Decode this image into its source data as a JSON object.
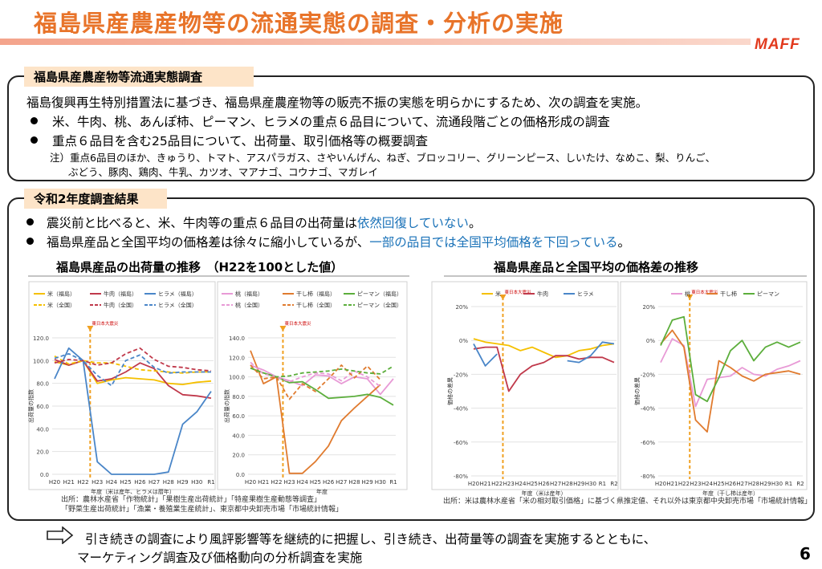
{
  "title": "福島県産農産物等の流通実態の調査・分析の実施",
  "brand": "MAFF",
  "page_number": "6",
  "survey": {
    "label": "福島県産農産物等流通実態調査",
    "intro": "福島復興再生特別措置法に基づき、福島県産農産物等の販売不振の実態を明らかにするため、次の調査を実施。",
    "bullet1": "米、牛肉、桃、あんぽ柿、ピーマン、ヒラメの重点６品目について、流通段階ごとの価格形成の調査",
    "bullet2": "重点６品目を含む25品目について、出荷量、取引価格等の概要調査",
    "note1": "注）重点6品目のほか、きゅうり、トマト、アスパラガス、さやいんげん、ねぎ、ブロッコリー、グリーンピース、しいたけ、なめこ、梨、りんご、",
    "note2": "ぶどう、豚肉、鶏肉、牛乳、カツオ、マアナゴ、コウナゴ、マガレイ"
  },
  "results": {
    "label": "令和2年度調査結果",
    "b1_pre": "震災前と比べると、米、牛肉等の重点６品目の出荷量は",
    "b1_hl": "依然回復していない",
    "b1_post": "。",
    "b2_pre": "福島県産品と全国平均の価格差は徐々に縮小しているが、",
    "b2_hl": "一部の品目では全国平均価格を下回っている",
    "b2_post": "。",
    "left_title": "福島県産品の出荷量の推移　（H22を100とした値）",
    "right_title": "福島県産品と全国平均の価格差の推移",
    "source_left1": "出所：農林水産省「作物統計」「果樹生産出荷統計」「特産果樹生産動態等調査」",
    "source_left2": "「野菜生産出荷統計」「漁業・養殖業生産統計」、東京都中央卸売市場「市場統計情報」",
    "source_right": "出所：米は農林水産省「米の相対取引価格」に基づく県推定値、それ以外は東京都中央卸売市場「市場統計情報」"
  },
  "footer": {
    "line1": "引き続きの調査により風評影響等を継続的に把握し、引き続き、出荷量等の調査を実施するとともに、",
    "line2": "マーケティング調査及び価格動向の分析調査を実施"
  },
  "colors": {
    "rice": "#f5c000",
    "beef": "#c0394b",
    "flounder": "#4a86c8",
    "peach": "#e89ad6",
    "persimmon": "#e07b2f",
    "pepper": "#5cae3c",
    "quake": "#f0a020"
  },
  "chart_data": [
    {
      "type": "line",
      "title": "",
      "categories": [
        "H20",
        "H21",
        "H22",
        "H23",
        "H24",
        "H25",
        "H26",
        "H27",
        "H28",
        "H29",
        "H30",
        "R1"
      ],
      "xlabel": "年度（米は産年、ヒラメは暦年）",
      "ylabel": "出荷量の指数",
      "ylim": [
        0,
        120
      ],
      "yticks": [
        "0.0",
        "20.0",
        "40.0",
        "60.0",
        "80.0",
        "100.0",
        "120.0"
      ],
      "annotation": "東日本大震災",
      "legend": [
        "米（福島）",
        "牛肉（福島）",
        "ヒラメ（福島）",
        "米（全国）",
        "牛肉（全国）",
        "ヒラメ（全国）"
      ],
      "series": [
        {
          "name": "米（福島）",
          "color": "#f5c000",
          "dash": false,
          "values": [
            99,
            96,
            100,
            80,
            83,
            85,
            84,
            83,
            80,
            79,
            81,
            82
          ]
        },
        {
          "name": "牛肉（福島）",
          "color": "#c0394b",
          "dash": false,
          "values": [
            101,
            96,
            100,
            82,
            84,
            90,
            98,
            93,
            78,
            70,
            69,
            67
          ]
        },
        {
          "name": "ヒラメ（福島）",
          "color": "#4a86c8",
          "dash": false,
          "values": [
            84,
            111,
            100,
            11,
            0,
            0,
            0,
            0,
            2,
            44,
            55,
            73
          ]
        },
        {
          "name": "米（全国）",
          "color": "#f5c000",
          "dash": true,
          "values": [
            104,
            97,
            100,
            98,
            98,
            95,
            92,
            91,
            90,
            89,
            90,
            90
          ]
        },
        {
          "name": "牛肉（全国）",
          "color": "#c0394b",
          "dash": true,
          "values": [
            98,
            101,
            100,
            96,
            98,
            106,
            111,
            101,
            95,
            94,
            92,
            91
          ]
        },
        {
          "name": "ヒラメ（全国）",
          "color": "#4a86c8",
          "dash": true,
          "values": [
            102,
            106,
            100,
            87,
            78,
            100,
            105,
            94,
            89,
            90,
            90,
            90
          ]
        }
      ]
    },
    {
      "type": "line",
      "title": "",
      "categories": [
        "H20",
        "H21",
        "H22",
        "H23",
        "H24",
        "H25",
        "H26",
        "H27",
        "H28",
        "H29",
        "H30",
        "R1"
      ],
      "xlabel": "年度",
      "ylabel": "出荷量の指数",
      "ylim": [
        0,
        140
      ],
      "yticks": [
        "0.0",
        "20.0",
        "40.0",
        "60.0",
        "80.0",
        "100.0",
        "120.0",
        "140.0"
      ],
      "annotation": "東日本大震災",
      "legend": [
        "桃（福島）",
        "干し柿（福島）",
        "ピーマン（福島）",
        "桃（全国）",
        "干し柿（全国）",
        "ピーマン（全国）"
      ],
      "series": [
        {
          "name": "桃（福島）",
          "color": "#e89ad6",
          "dash": false,
          "values": [
            112,
            107,
            100,
            96,
            91,
            102,
            101,
            93,
            100,
            98,
            82,
            98
          ]
        },
        {
          "name": "干し柿（福島）",
          "color": "#e07b2f",
          "dash": false,
          "values": [
            127,
            93,
            100,
            1,
            1,
            13,
            29,
            55,
            68,
            80,
            92,
            null
          ]
        },
        {
          "name": "ピーマン（福島）",
          "color": "#5cae3c",
          "dash": false,
          "values": [
            109,
            104,
            100,
            94,
            95,
            87,
            78,
            79,
            80,
            82,
            79,
            71
          ]
        },
        {
          "name": "桃（全国）",
          "color": "#e89ad6",
          "dash": true,
          "values": [
            115,
            103,
            100,
            95,
            100,
            104,
            103,
            96,
            106,
            100,
            90,
            null
          ]
        },
        {
          "name": "干し柿（全国）",
          "color": "#e07b2f",
          "dash": true,
          "values": [
            112,
            98,
            100,
            77,
            93,
            85,
            98,
            112,
            99,
            111,
            97,
            null
          ]
        },
        {
          "name": "ピーマン（全国）",
          "color": "#5cae3c",
          "dash": true,
          "values": [
            109,
            104,
            100,
            101,
            104,
            105,
            106,
            108,
            106,
            104,
            103,
            111
          ]
        }
      ]
    },
    {
      "type": "line",
      "title": "",
      "categories": [
        "H20",
        "H21",
        "H22",
        "H23",
        "H24",
        "H25",
        "H26",
        "H27",
        "H28",
        "H29",
        "H30",
        "R1",
        "R2"
      ],
      "xlabel": "年度（米は産年）",
      "ylabel": "価格の差異",
      "ylim": [
        -80,
        20
      ],
      "yticks": [
        "-80%",
        "-60%",
        "-40%",
        "-20%",
        "0%",
        "20%"
      ],
      "annotation": "東日本大震災",
      "legend": [
        "米",
        "牛肉",
        "ヒラメ"
      ],
      "series": [
        {
          "name": "米",
          "color": "#f5c000",
          "dash": false,
          "values": [
            1,
            -1,
            -2,
            -3,
            -6,
            -4,
            -7,
            -10,
            -9,
            -6,
            -5,
            -3,
            -2
          ]
        },
        {
          "name": "牛肉",
          "color": "#c0394b",
          "dash": false,
          "values": [
            -5,
            -4,
            -4,
            -30,
            -20,
            -15,
            -13,
            -9,
            -9,
            -11,
            -10,
            -10,
            -13
          ]
        },
        {
          "name": "ヒラメ",
          "color": "#4a86c8",
          "dash": false,
          "values": [
            -2,
            -15,
            -8,
            null,
            null,
            null,
            null,
            null,
            -12,
            -13,
            -9,
            -1,
            -2
          ]
        }
      ]
    },
    {
      "type": "line",
      "title": "",
      "categories": [
        "H20",
        "H21",
        "H22",
        "H23",
        "H24",
        "H25",
        "H26",
        "H27",
        "H28",
        "H29",
        "H30",
        "R1",
        "R2"
      ],
      "xlabel": "年度（干し柿は産年）",
      "ylabel": "価格の差異",
      "ylim": [
        -80,
        20
      ],
      "yticks": [
        "-80%",
        "-60%",
        "-40%",
        "-20%",
        "0%",
        "20%"
      ],
      "annotation": "東日本大震災",
      "legend": [
        "桃",
        "干し柿",
        "ピーマン"
      ],
      "series": [
        {
          "name": "桃",
          "color": "#e89ad6",
          "dash": false,
          "values": [
            -13,
            1,
            -3,
            -39,
            -23,
            -22,
            -21,
            -16,
            -20,
            -21,
            -17,
            -15,
            -12
          ]
        },
        {
          "name": "干し柿",
          "color": "#e07b2f",
          "dash": false,
          "values": [
            -2,
            6,
            -4,
            -47,
            -54,
            -12,
            -16,
            -21,
            -24,
            -20,
            -19,
            -18,
            -20
          ]
        },
        {
          "name": "ピーマン",
          "color": "#5cae3c",
          "dash": false,
          "values": [
            -3,
            12,
            14,
            -32,
            -36,
            -22,
            -6,
            0,
            -12,
            -4,
            -1,
            -4,
            -1
          ]
        }
      ]
    }
  ]
}
